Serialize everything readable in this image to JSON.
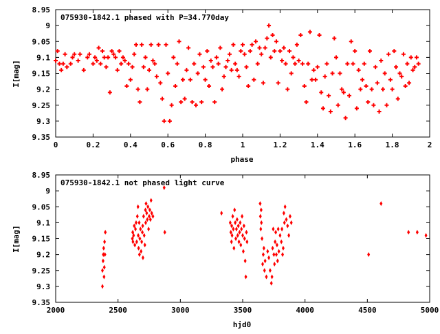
{
  "chart_data": [
    {
      "type": "scatter",
      "title": "075930-1842.1 phased with P=34.770day",
      "xlabel": "phase",
      "ylabel": "I[mag]",
      "xlim": [
        0,
        2
      ],
      "ylim": [
        9.35,
        8.95
      ],
      "y_inverted": true,
      "grid": false,
      "marker_color": "#ff0000",
      "x_ticks": [
        "0",
        "0.2",
        "0.4",
        "0.6",
        "0.8",
        "1",
        "1.2",
        "1.4",
        "1.6",
        "1.8",
        "2"
      ],
      "y_ticks": [
        "8.95",
        "9",
        "9.05",
        "9.1",
        "9.15",
        "9.2",
        "9.25",
        "9.3",
        "9.35"
      ],
      "points": [
        [
          0.0,
          9.11
        ],
        [
          0.01,
          9.08
        ],
        [
          0.02,
          9.12
        ],
        [
          0.03,
          9.14
        ],
        [
          0.04,
          9.12
        ],
        [
          0.05,
          9.09
        ],
        [
          0.06,
          9.13
        ],
        [
          0.08,
          9.12
        ],
        [
          0.09,
          9.1
        ],
        [
          0.1,
          9.09
        ],
        [
          0.12,
          9.11
        ],
        [
          0.13,
          9.09
        ],
        [
          0.15,
          9.14
        ],
        [
          0.17,
          9.1
        ],
        [
          0.18,
          9.09
        ],
        [
          0.2,
          9.12
        ],
        [
          0.21,
          9.1
        ],
        [
          0.22,
          9.11
        ],
        [
          0.23,
          9.07
        ],
        [
          0.24,
          9.12
        ],
        [
          0.25,
          9.08
        ],
        [
          0.26,
          9.1
        ],
        [
          0.27,
          9.13
        ],
        [
          0.28,
          9.1
        ],
        [
          0.29,
          9.21
        ],
        [
          0.3,
          9.08
        ],
        [
          0.31,
          9.09
        ],
        [
          0.32,
          9.1
        ],
        [
          0.33,
          9.14
        ],
        [
          0.34,
          9.08
        ],
        [
          0.35,
          9.12
        ],
        [
          0.36,
          9.1
        ],
        [
          0.37,
          9.11
        ],
        [
          0.38,
          9.19
        ],
        [
          0.39,
          9.12
        ],
        [
          0.4,
          9.17
        ],
        [
          0.41,
          9.13
        ],
        [
          0.42,
          9.09
        ],
        [
          0.43,
          9.06
        ],
        [
          0.44,
          9.2
        ],
        [
          0.45,
          9.24
        ],
        [
          0.46,
          9.06
        ],
        [
          0.47,
          9.13
        ],
        [
          0.48,
          9.1
        ],
        [
          0.49,
          9.2
        ],
        [
          0.5,
          9.14
        ],
        [
          0.51,
          9.06
        ],
        [
          0.52,
          9.11
        ],
        [
          0.53,
          9.12
        ],
        [
          0.54,
          9.16
        ],
        [
          0.55,
          9.06
        ],
        [
          0.56,
          9.18
        ],
        [
          0.57,
          9.23
        ],
        [
          0.58,
          9.3
        ],
        [
          0.59,
          9.06
        ],
        [
          0.6,
          9.15
        ],
        [
          0.61,
          9.3
        ],
        [
          0.62,
          9.25
        ],
        [
          0.63,
          9.1
        ],
        [
          0.64,
          9.19
        ],
        [
          0.65,
          9.12
        ],
        [
          0.66,
          9.05
        ],
        [
          0.67,
          9.24
        ],
        [
          0.68,
          9.17
        ],
        [
          0.69,
          9.23
        ],
        [
          0.7,
          9.14
        ],
        [
          0.71,
          9.07
        ],
        [
          0.72,
          9.17
        ],
        [
          0.73,
          9.24
        ],
        [
          0.74,
          9.12
        ],
        [
          0.75,
          9.25
        ],
        [
          0.76,
          9.15
        ],
        [
          0.77,
          9.09
        ],
        [
          0.78,
          9.24
        ],
        [
          0.79,
          9.13
        ],
        [
          0.8,
          9.17
        ],
        [
          0.81,
          9.08
        ],
        [
          0.82,
          9.19
        ],
        [
          0.83,
          9.11
        ],
        [
          0.84,
          9.13
        ],
        [
          0.85,
          9.24
        ],
        [
          0.86,
          9.1
        ],
        [
          0.87,
          9.12
        ],
        [
          0.88,
          9.07
        ],
        [
          0.89,
          9.2
        ],
        [
          0.9,
          9.16
        ],
        [
          0.91,
          9.13
        ],
        [
          0.92,
          9.11
        ],
        [
          0.93,
          9.09
        ],
        [
          0.94,
          9.14
        ],
        [
          0.95,
          9.06
        ],
        [
          0.96,
          9.12
        ],
        [
          0.97,
          9.14
        ],
        [
          0.98,
          9.16
        ],
        [
          0.99,
          9.08
        ],
        [
          1.0,
          9.06
        ],
        [
          1.01,
          9.09
        ],
        [
          1.02,
          9.13
        ],
        [
          1.03,
          9.19
        ],
        [
          1.04,
          9.08
        ],
        [
          1.05,
          9.06
        ],
        [
          1.06,
          9.17
        ],
        [
          1.07,
          9.05
        ],
        [
          1.08,
          9.12
        ],
        [
          1.09,
          9.07
        ],
        [
          1.1,
          9.09
        ],
        [
          1.11,
          9.18
        ],
        [
          1.12,
          9.07
        ],
        [
          1.13,
          9.04
        ],
        [
          1.14,
          9.0
        ],
        [
          1.15,
          9.1
        ],
        [
          1.16,
          9.03
        ],
        [
          1.17,
          9.08
        ],
        [
          1.18,
          9.05
        ],
        [
          1.19,
          9.18
        ],
        [
          1.2,
          9.08
        ],
        [
          1.21,
          9.11
        ],
        [
          1.22,
          9.07
        ],
        [
          1.23,
          9.12
        ],
        [
          1.24,
          9.2
        ],
        [
          1.25,
          9.08
        ],
        [
          1.26,
          9.15
        ],
        [
          1.27,
          9.1
        ],
        [
          1.28,
          9.12
        ],
        [
          1.29,
          9.06
        ],
        [
          1.3,
          9.11
        ],
        [
          1.31,
          9.03
        ],
        [
          1.32,
          9.12
        ],
        [
          1.33,
          9.19
        ],
        [
          1.34,
          9.24
        ],
        [
          1.35,
          9.12
        ],
        [
          1.36,
          9.02
        ],
        [
          1.37,
          9.17
        ],
        [
          1.38,
          9.14
        ],
        [
          1.39,
          9.17
        ],
        [
          1.4,
          9.13
        ],
        [
          1.41,
          9.03
        ],
        [
          1.42,
          9.21
        ],
        [
          1.43,
          9.26
        ],
        [
          1.44,
          9.16
        ],
        [
          1.45,
          9.12
        ],
        [
          1.46,
          9.22
        ],
        [
          1.47,
          9.27
        ],
        [
          1.48,
          9.15
        ],
        [
          1.49,
          9.04
        ],
        [
          1.5,
          9.1
        ],
        [
          1.51,
          9.25
        ],
        [
          1.52,
          9.15
        ],
        [
          1.53,
          9.2
        ],
        [
          1.54,
          9.21
        ],
        [
          1.55,
          9.29
        ],
        [
          1.56,
          9.12
        ],
        [
          1.57,
          9.22
        ],
        [
          1.58,
          9.05
        ],
        [
          1.59,
          9.12
        ],
        [
          1.6,
          9.08
        ],
        [
          1.61,
          9.26
        ],
        [
          1.62,
          9.14
        ],
        [
          1.63,
          9.2
        ],
        [
          1.64,
          9.17
        ],
        [
          1.65,
          9.12
        ],
        [
          1.66,
          9.19
        ],
        [
          1.67,
          9.24
        ],
        [
          1.68,
          9.08
        ],
        [
          1.69,
          9.2
        ],
        [
          1.7,
          9.25
        ],
        [
          1.71,
          9.13
        ],
        [
          1.72,
          9.18
        ],
        [
          1.73,
          9.27
        ],
        [
          1.74,
          9.11
        ],
        [
          1.75,
          9.2
        ],
        [
          1.76,
          9.15
        ],
        [
          1.77,
          9.25
        ],
        [
          1.78,
          9.09
        ],
        [
          1.79,
          9.17
        ],
        [
          1.8,
          9.2
        ],
        [
          1.81,
          9.08
        ],
        [
          1.82,
          9.13
        ],
        [
          1.83,
          9.23
        ],
        [
          1.84,
          9.15
        ],
        [
          1.85,
          9.16
        ],
        [
          1.86,
          9.09
        ],
        [
          1.87,
          9.19
        ],
        [
          1.88,
          9.12
        ],
        [
          1.89,
          9.18
        ],
        [
          1.9,
          9.1
        ],
        [
          1.91,
          9.14
        ],
        [
          1.92,
          9.13
        ],
        [
          1.93,
          9.1
        ],
        [
          1.94,
          9.12
        ]
      ]
    },
    {
      "type": "scatter",
      "title": "075930-1842.1 not phased light curve",
      "xlabel": "hjd0",
      "ylabel": "I[mag]",
      "xlim": [
        2000,
        5000
      ],
      "ylim": [
        9.35,
        8.95
      ],
      "y_inverted": true,
      "grid": false,
      "marker_color": "#ff0000",
      "x_ticks": [
        "2000",
        "2500",
        "3000",
        "3500",
        "4000",
        "4500",
        "5000"
      ],
      "y_ticks": [
        "8.95",
        "9",
        "9.05",
        "9.1",
        "9.15",
        "9.2",
        "9.25",
        "9.3",
        "9.35"
      ],
      "points": [
        [
          2375,
          9.3
        ],
        [
          2375,
          9.25
        ],
        [
          2380,
          9.22
        ],
        [
          2382,
          9.2
        ],
        [
          2385,
          9.18
        ],
        [
          2388,
          9.27
        ],
        [
          2390,
          9.24
        ],
        [
          2392,
          9.16
        ],
        [
          2395,
          9.2
        ],
        [
          2398,
          9.13
        ],
        [
          2615,
          9.15
        ],
        [
          2618,
          9.13
        ],
        [
          2620,
          9.16
        ],
        [
          2625,
          9.14
        ],
        [
          2630,
          9.11
        ],
        [
          2635,
          9.17
        ],
        [
          2640,
          9.12
        ],
        [
          2645,
          9.1
        ],
        [
          2650,
          9.16
        ],
        [
          2655,
          9.08
        ],
        [
          2660,
          9.05
        ],
        [
          2662,
          9.14
        ],
        [
          2665,
          9.18
        ],
        [
          2670,
          9.1
        ],
        [
          2672,
          9.2
        ],
        [
          2675,
          9.15
        ],
        [
          2680,
          9.12
        ],
        [
          2685,
          9.19
        ],
        [
          2690,
          9.16
        ],
        [
          2695,
          9.13
        ],
        [
          2698,
          9.11
        ],
        [
          2700,
          9.21
        ],
        [
          2705,
          9.08
        ],
        [
          2710,
          9.14
        ],
        [
          2715,
          9.17
        ],
        [
          2720,
          9.06
        ],
        [
          2722,
          9.1
        ],
        [
          2725,
          9.04
        ],
        [
          2730,
          9.07
        ],
        [
          2735,
          9.09
        ],
        [
          2740,
          9.05
        ],
        [
          2745,
          9.12
        ],
        [
          2750,
          9.08
        ],
        [
          2755,
          9.06
        ],
        [
          2760,
          9.09
        ],
        [
          2765,
          9.03
        ],
        [
          2770,
          9.07
        ],
        [
          2780,
          9.08
        ],
        [
          2870,
          8.99
        ],
        [
          2875,
          9.13
        ],
        [
          3330,
          9.07
        ],
        [
          3400,
          9.1
        ],
        [
          3405,
          9.13
        ],
        [
          3410,
          9.16
        ],
        [
          3412,
          9.11
        ],
        [
          3415,
          9.14
        ],
        [
          3420,
          9.08
        ],
        [
          3425,
          9.12
        ],
        [
          3430,
          9.18
        ],
        [
          3435,
          9.06
        ],
        [
          3440,
          9.1
        ],
        [
          3445,
          9.15
        ],
        [
          3450,
          9.12
        ],
        [
          3455,
          9.09
        ],
        [
          3460,
          9.14
        ],
        [
          3465,
          9.11
        ],
        [
          3470,
          9.16
        ],
        [
          3475,
          9.13
        ],
        [
          3480,
          9.1
        ],
        [
          3485,
          9.17
        ],
        [
          3490,
          9.12
        ],
        [
          3495,
          9.08
        ],
        [
          3500,
          9.14
        ],
        [
          3505,
          9.19
        ],
        [
          3510,
          9.11
        ],
        [
          3515,
          9.15
        ],
        [
          3520,
          9.22
        ],
        [
          3525,
          9.27
        ],
        [
          3530,
          9.13
        ],
        [
          3535,
          9.16
        ],
        [
          3640,
          9.04
        ],
        [
          3642,
          9.08
        ],
        [
          3645,
          9.12
        ],
        [
          3648,
          9.06
        ],
        [
          3650,
          9.1
        ],
        [
          3655,
          9.15
        ],
        [
          3660,
          9.23
        ],
        [
          3665,
          9.2
        ],
        [
          3670,
          9.18
        ],
        [
          3675,
          9.25
        ],
        [
          3680,
          9.22
        ],
        [
          3690,
          9.27
        ],
        [
          3700,
          9.19
        ],
        [
          3710,
          9.21
        ],
        [
          3720,
          9.25
        ],
        [
          3730,
          9.29
        ],
        [
          3735,
          9.27
        ],
        [
          3740,
          9.18
        ],
        [
          3745,
          9.12
        ],
        [
          3750,
          9.2
        ],
        [
          3755,
          9.23
        ],
        [
          3760,
          9.16
        ],
        [
          3765,
          9.13
        ],
        [
          3770,
          9.2
        ],
        [
          3775,
          9.17
        ],
        [
          3780,
          9.22
        ],
        [
          3785,
          9.12
        ],
        [
          3790,
          9.19
        ],
        [
          3800,
          9.14
        ],
        [
          3810,
          9.16
        ],
        [
          3815,
          9.12
        ],
        [
          3820,
          9.2
        ],
        [
          3825,
          9.18
        ],
        [
          3830,
          9.07
        ],
        [
          3835,
          9.1
        ],
        [
          3840,
          9.05
        ],
        [
          3850,
          9.09
        ],
        [
          3860,
          9.11
        ],
        [
          3870,
          9.14
        ],
        [
          3880,
          9.08
        ],
        [
          3890,
          9.1
        ],
        [
          4510,
          9.2
        ],
        [
          4610,
          9.04
        ],
        [
          4830,
          9.13
        ],
        [
          4900,
          9.13
        ],
        [
          4970,
          9.14
        ]
      ]
    }
  ]
}
